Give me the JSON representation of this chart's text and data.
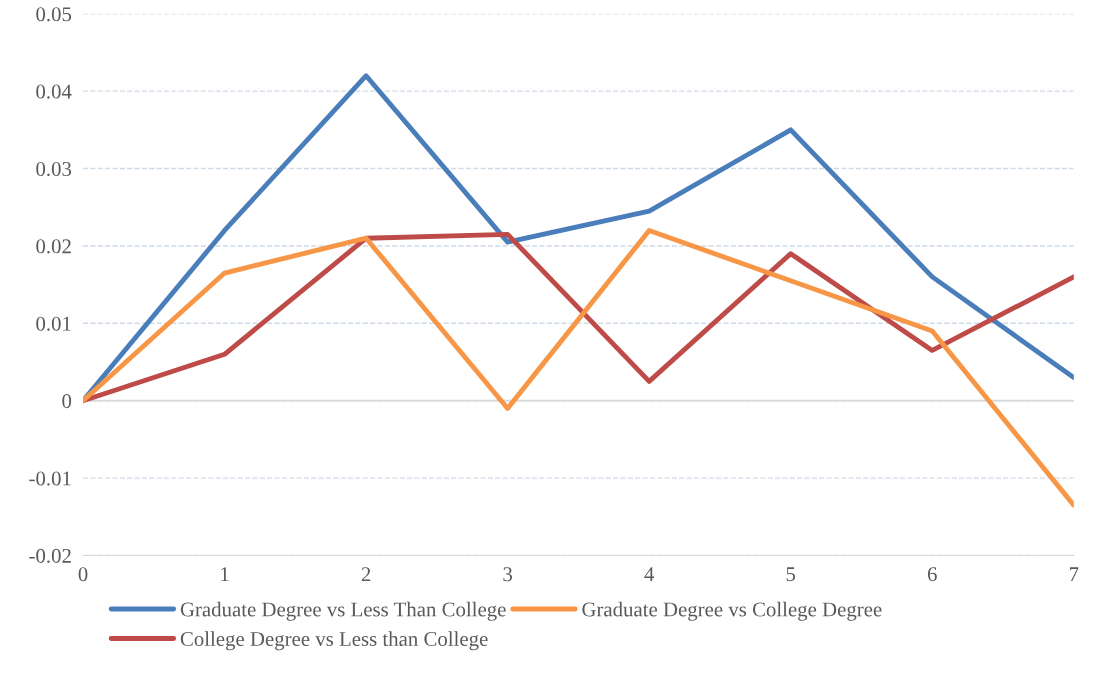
{
  "chart_data": {
    "type": "line",
    "x": [
      0,
      1,
      2,
      3,
      4,
      5,
      6,
      7
    ],
    "series": [
      {
        "name": "Graduate Degree vs Less Than College",
        "color": "#4a7ebb",
        "values": [
          0,
          0.022,
          0.042,
          0.0205,
          0.0245,
          0.035,
          0.016,
          0.003
        ]
      },
      {
        "name": "College Degree vs Less than College",
        "color": "#be4b48",
        "values": [
          0,
          0.006,
          0.021,
          0.0215,
          0.0025,
          0.019,
          0.0065,
          0.016
        ]
      },
      {
        "name": "Graduate Degree vs College Degree",
        "color": "#f79646",
        "values": [
          0,
          0.0165,
          0.021,
          -0.001,
          0.022,
          0.0155,
          0.009,
          -0.0135
        ]
      }
    ],
    "xlim": [
      0,
      7
    ],
    "xticks": [
      0,
      1,
      2,
      3,
      4,
      5,
      6,
      7
    ],
    "ylim": [
      -0.02,
      0.05
    ],
    "yticks": [
      -0.02,
      -0.01,
      0,
      0.01,
      0.02,
      0.03,
      0.04,
      0.05
    ],
    "ref_lines": [
      {
        "axis": "y",
        "value": 0,
        "color": "#d9d9d9"
      }
    ],
    "grid": "y",
    "legend": "bottom",
    "marker": "none",
    "line_style": "solid"
  }
}
